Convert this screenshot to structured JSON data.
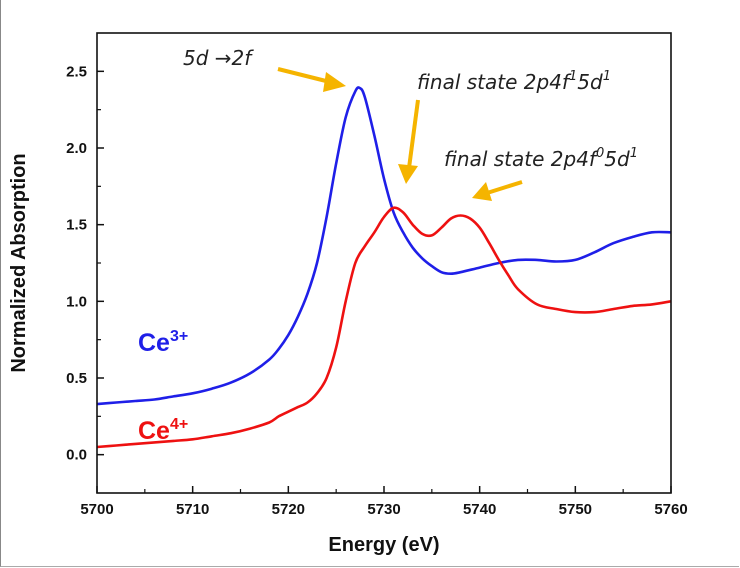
{
  "chart_data": {
    "type": "line",
    "title": "",
    "xlabel": "Energy (eV)",
    "ylabel": "Normalized Absorption",
    "xlim": [
      5700,
      5760
    ],
    "ylim": [
      -0.25,
      2.75
    ],
    "xticks": [
      5700,
      5710,
      5720,
      5730,
      5740,
      5750,
      5760
    ],
    "yticks": [
      0.0,
      0.5,
      1.0,
      1.5,
      2.0,
      2.5
    ],
    "xtick_labels": [
      "5700",
      "5710",
      "5720",
      "5730",
      "5740",
      "5750",
      "5760"
    ],
    "ytick_labels": [
      "0.0",
      "0.5",
      "1.0",
      "1.5",
      "2.0",
      "2.5"
    ],
    "grid": false,
    "series": [
      {
        "label_base": "Ce",
        "label_sup": "3+",
        "color": "#1f1fe8",
        "x": [
          5700,
          5702,
          5704,
          5706,
          5708,
          5710,
          5712,
          5714,
          5716,
          5718,
          5719,
          5720,
          5721,
          5722,
          5723,
          5724,
          5725,
          5726,
          5727,
          5727.5,
          5728,
          5729,
          5730,
          5731,
          5732,
          5733,
          5734,
          5735,
          5736,
          5737,
          5738,
          5740,
          5742,
          5744,
          5746,
          5748,
          5750,
          5752,
          5754,
          5756,
          5758,
          5760
        ],
        "y": [
          0.33,
          0.34,
          0.35,
          0.36,
          0.38,
          0.4,
          0.43,
          0.47,
          0.53,
          0.62,
          0.69,
          0.78,
          0.9,
          1.05,
          1.25,
          1.55,
          1.9,
          2.2,
          2.37,
          2.39,
          2.33,
          2.08,
          1.8,
          1.58,
          1.45,
          1.35,
          1.28,
          1.23,
          1.19,
          1.18,
          1.19,
          1.22,
          1.25,
          1.27,
          1.27,
          1.26,
          1.27,
          1.32,
          1.38,
          1.42,
          1.45,
          1.45
        ]
      },
      {
        "label_base": "Ce",
        "label_sup": "4+",
        "color": "#ee1111",
        "x": [
          5700,
          5702,
          5704,
          5706,
          5708,
          5710,
          5712,
          5714,
          5716,
          5718,
          5719,
          5720,
          5721,
          5722,
          5723,
          5724,
          5725,
          5726,
          5727,
          5728,
          5729,
          5730,
          5731,
          5732,
          5733,
          5734,
          5735,
          5736,
          5737,
          5738,
          5739,
          5740,
          5741,
          5742,
          5743,
          5744,
          5746,
          5748,
          5750,
          5752,
          5754,
          5756,
          5758,
          5760
        ],
        "y": [
          0.05,
          0.06,
          0.07,
          0.08,
          0.09,
          0.1,
          0.12,
          0.14,
          0.17,
          0.21,
          0.25,
          0.28,
          0.31,
          0.34,
          0.4,
          0.5,
          0.7,
          1.0,
          1.25,
          1.36,
          1.45,
          1.55,
          1.61,
          1.58,
          1.5,
          1.44,
          1.43,
          1.48,
          1.54,
          1.56,
          1.54,
          1.48,
          1.38,
          1.27,
          1.17,
          1.08,
          0.98,
          0.95,
          0.93,
          0.93,
          0.95,
          0.97,
          0.98,
          1.0
        ]
      }
    ],
    "annotations": [
      {
        "text": "5d →2f",
        "base": "",
        "sup": "",
        "tail": ""
      },
      {
        "text": "final state 2p4f",
        "sup": "1",
        "tail": "5d",
        "sup2": "1"
      },
      {
        "text": "final state 2p4f",
        "sup": "0",
        "tail": "5d",
        "sup2": "1"
      }
    ],
    "arrow_color": "#f5b400"
  }
}
